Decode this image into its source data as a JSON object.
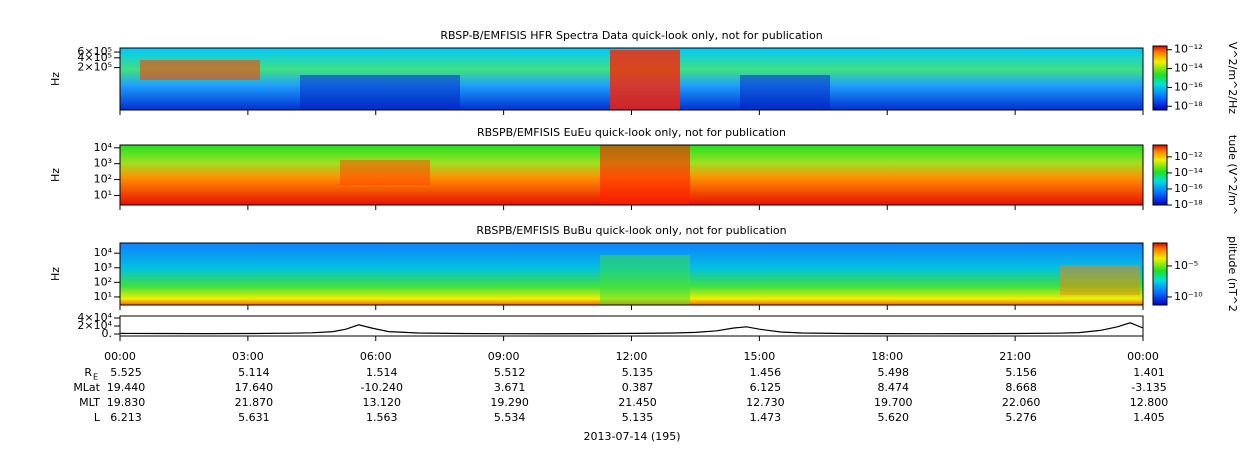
{
  "chart_data": [
    {
      "type": "spectrogram",
      "title": "RBSP-B/EMFISIS  HFR Spectra Data quick-look only, not for publication",
      "y_label": "Hz",
      "log_y": true,
      "ylim": [
        10000,
        800000
      ],
      "yticks": [
        {
          "value": 200000,
          "label": "2×10⁵"
        },
        {
          "value": 400000,
          "label": "4×10⁵"
        },
        {
          "value": 600000,
          "label": "6×10⁵"
        }
      ],
      "colorbar_label": "V^2/m^2/Hz",
      "clim": [
        4e-19,
        2.5e-12
      ],
      "cticks": [
        {
          "value": 1e-12,
          "label": "10⁻¹²"
        },
        {
          "value": 1e-14,
          "label": "10⁻¹⁴"
        },
        {
          "value": 1e-16,
          "label": "10⁻¹⁶"
        },
        {
          "value": 1e-18,
          "label": "10⁻¹⁸"
        }
      ]
    },
    {
      "type": "spectrogram",
      "title": "RBSPB/EMFISIS  EuEu quick-look only, not for publication",
      "y_label": "Hz",
      "log_y": true,
      "ylim": [
        2.5,
        15000
      ],
      "yticks": [
        {
          "value": 10,
          "label": "10¹"
        },
        {
          "value": 100,
          "label": "10²"
        },
        {
          "value": 1000,
          "label": "10³"
        },
        {
          "value": 10000,
          "label": "10⁴"
        }
      ],
      "colorbar_label": "tude (V^2/m^",
      "clim": [
        1e-18,
        3e-11
      ],
      "cticks": [
        {
          "value": 1e-12,
          "label": "10⁻¹²"
        },
        {
          "value": 1e-14,
          "label": "10⁻¹⁴"
        },
        {
          "value": 1e-16,
          "label": "10⁻¹⁶"
        },
        {
          "value": 1e-18,
          "label": "10⁻¹⁸"
        }
      ]
    },
    {
      "type": "spectrogram",
      "title": "RBSPB/EMFISIS  BuBu quick-look only, not for publication",
      "y_label": "Hz",
      "log_y": true,
      "ylim": [
        2.8,
        50000
      ],
      "yticks": [
        {
          "value": 10,
          "label": "10¹"
        },
        {
          "value": 100,
          "label": "10²"
        },
        {
          "value": 1000,
          "label": "10³"
        },
        {
          "value": 10000,
          "label": "10⁴"
        }
      ],
      "colorbar_label": "plitude (nT^2",
      "clim": [
        5e-12,
        0.05
      ],
      "cticks": [
        {
          "value": 1e-05,
          "label": "10⁻⁵"
        },
        {
          "value": 1e-10,
          "label": "10⁻¹⁰"
        }
      ]
    },
    {
      "type": "line",
      "ylim": [
        -5000,
        45000
      ],
      "yticks": [
        {
          "value": 0,
          "label": "0."
        },
        {
          "value": 20000,
          "label": "2×10⁴"
        },
        {
          "value": 40000,
          "label": "4×10⁴"
        }
      ],
      "xlim": [
        0,
        24
      ],
      "xticks": [
        {
          "value": 0,
          "label": "00:00"
        },
        {
          "value": 3,
          "label": "03:00"
        },
        {
          "value": 6,
          "label": "06:00"
        },
        {
          "value": 9,
          "label": "09:00"
        },
        {
          "value": 12,
          "label": "12:00"
        },
        {
          "value": 15,
          "label": "15:00"
        },
        {
          "value": 18,
          "label": "18:00"
        },
        {
          "value": 21,
          "label": "21:00"
        },
        {
          "value": 24,
          "label": "00:00"
        }
      ],
      "x": [
        0,
        1,
        2,
        3,
        4,
        4.5,
        5,
        5.3,
        5.6,
        5.9,
        6.3,
        7,
        8,
        9,
        10,
        11,
        12,
        13,
        13.5,
        14,
        14.4,
        14.7,
        15,
        15.5,
        16,
        17,
        18,
        19,
        20,
        21,
        22,
        22.5,
        23,
        23.4,
        23.7,
        24
      ],
      "values": [
        1500,
        1200,
        1000,
        1200,
        2000,
        3000,
        6000,
        12000,
        23000,
        15000,
        6000,
        2500,
        1200,
        800,
        700,
        900,
        1500,
        2500,
        4000,
        8000,
        15000,
        18000,
        12000,
        5000,
        2500,
        1200,
        900,
        800,
        900,
        1200,
        2000,
        3500,
        9000,
        18000,
        28000,
        15000
      ],
      "color": "#000000"
    }
  ],
  "ephemeris": {
    "rows": [
      {
        "label": "R",
        "sub": "E",
        "values": [
          "5.525",
          "5.114",
          "1.514",
          "5.512",
          "5.135",
          "1.456",
          "5.498",
          "5.156",
          "1.401"
        ]
      },
      {
        "label": "MLat",
        "values": [
          "19.440",
          "17.640",
          "-10.240",
          "3.671",
          "0.387",
          "6.125",
          "8.474",
          "8.668",
          "-3.135"
        ]
      },
      {
        "label": "MLT",
        "values": [
          "19.830",
          "21.870",
          "13.120",
          "19.290",
          "21.450",
          "12.730",
          "19.700",
          "22.060",
          "12.800"
        ]
      },
      {
        "label": "L",
        "values": [
          "6.213",
          "5.631",
          "1.563",
          "5.534",
          "5.135",
          "1.473",
          "5.620",
          "5.276",
          "1.405"
        ]
      }
    ]
  },
  "date_label": "2013-07-14 (195)"
}
